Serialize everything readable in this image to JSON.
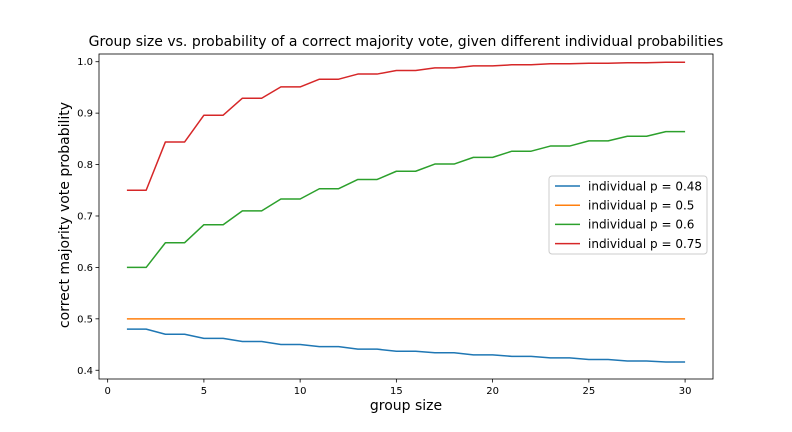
{
  "chart_data": {
    "type": "line",
    "title": "Group size vs. probability of a correct majority vote, given different individual probabilities",
    "xlabel": "group size",
    "ylabel": "correct majority vote probability",
    "xlim": [
      -0.45,
      31.45
    ],
    "ylim": [
      0.383,
      1.015
    ],
    "xticks": [
      0,
      5,
      10,
      15,
      20,
      25,
      30
    ],
    "yticks": [
      0.4,
      0.5,
      0.6,
      0.7,
      0.8,
      0.9,
      1.0
    ],
    "xtick_labels": [
      "0",
      "5",
      "10",
      "15",
      "20",
      "25",
      "30"
    ],
    "ytick_labels": [
      "0.4",
      "0.5",
      "0.6",
      "0.7",
      "0.8",
      "0.9",
      "1.0"
    ],
    "grid": false,
    "legend_position": "center-right",
    "x": [
      1,
      2,
      3,
      4,
      5,
      6,
      7,
      8,
      9,
      10,
      11,
      12,
      13,
      14,
      15,
      16,
      17,
      18,
      19,
      20,
      21,
      22,
      23,
      24,
      25,
      26,
      27,
      28,
      29,
      30
    ],
    "series": [
      {
        "name": "individual p = 0.48",
        "color": "#1f77b4",
        "values": [
          0.48,
          0.48,
          0.47,
          0.47,
          0.462,
          0.462,
          0.456,
          0.456,
          0.45,
          0.45,
          0.446,
          0.446,
          0.441,
          0.441,
          0.437,
          0.437,
          0.434,
          0.434,
          0.43,
          0.43,
          0.427,
          0.427,
          0.424,
          0.424,
          0.421,
          0.421,
          0.418,
          0.418,
          0.416,
          0.416
        ]
      },
      {
        "name": "individual p = 0.5",
        "color": "#ff7f0e",
        "values": [
          0.5,
          0.5,
          0.5,
          0.5,
          0.5,
          0.5,
          0.5,
          0.5,
          0.5,
          0.5,
          0.5,
          0.5,
          0.5,
          0.5,
          0.5,
          0.5,
          0.5,
          0.5,
          0.5,
          0.5,
          0.5,
          0.5,
          0.5,
          0.5,
          0.5,
          0.5,
          0.5,
          0.5,
          0.5,
          0.5
        ]
      },
      {
        "name": "individual p = 0.6",
        "color": "#2ca02c",
        "values": [
          0.6,
          0.6,
          0.648,
          0.648,
          0.683,
          0.683,
          0.71,
          0.71,
          0.733,
          0.733,
          0.753,
          0.753,
          0.771,
          0.771,
          0.787,
          0.787,
          0.801,
          0.801,
          0.814,
          0.814,
          0.826,
          0.826,
          0.836,
          0.836,
          0.846,
          0.846,
          0.855,
          0.855,
          0.864,
          0.864
        ]
      },
      {
        "name": "individual p = 0.75",
        "color": "#d62728",
        "values": [
          0.75,
          0.75,
          0.844,
          0.844,
          0.896,
          0.896,
          0.929,
          0.929,
          0.951,
          0.951,
          0.966,
          0.966,
          0.976,
          0.976,
          0.983,
          0.983,
          0.988,
          0.988,
          0.992,
          0.992,
          0.994,
          0.994,
          0.996,
          0.996,
          0.997,
          0.997,
          0.998,
          0.998,
          0.999,
          0.999
        ]
      }
    ]
  }
}
